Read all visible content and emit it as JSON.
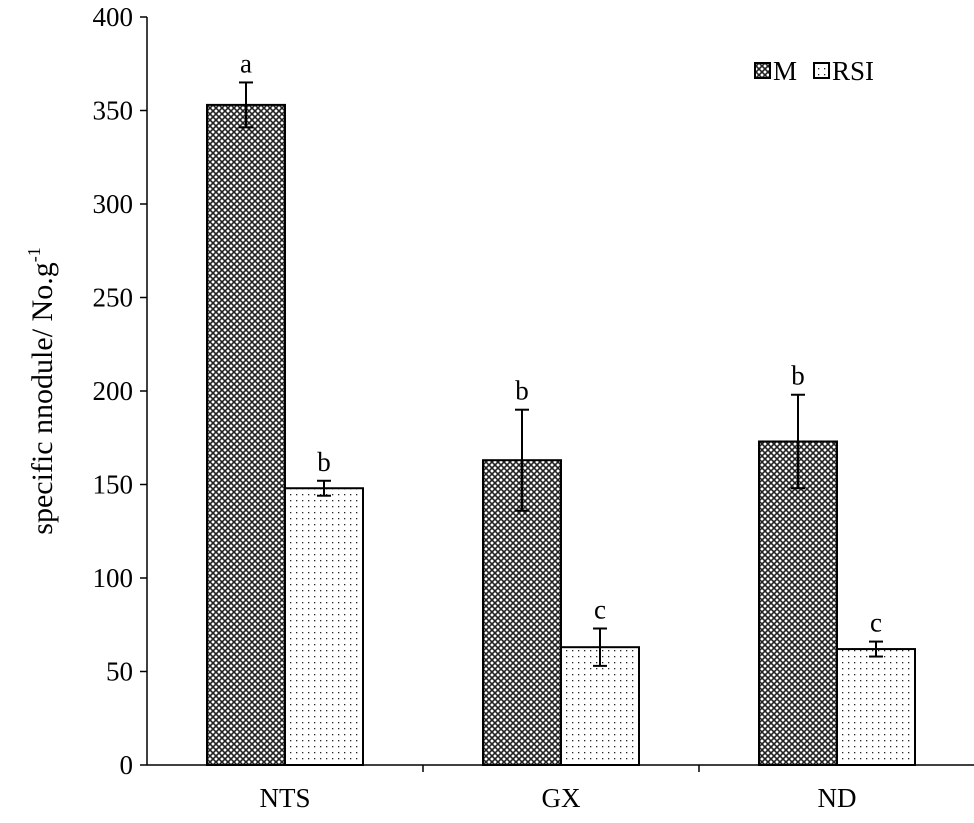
{
  "chart_data": {
    "type": "bar",
    "title": "",
    "xlabel": "",
    "ylabel": "specific nnodule/ No.g",
    "ylabel_superscript": "-1",
    "ylim": [
      0,
      400
    ],
    "yticks": [
      0,
      50,
      100,
      150,
      200,
      250,
      300,
      350,
      400
    ],
    "categories": [
      "NTS",
      "GX",
      "ND"
    ],
    "legend_position": "top-right",
    "grid": false,
    "series": [
      {
        "name": "M",
        "pattern": "crosshatch",
        "values": [
          353,
          163,
          173
        ],
        "errors": [
          12,
          27,
          25
        ],
        "labels": [
          "a",
          "b",
          "b"
        ]
      },
      {
        "name": "RSI",
        "pattern": "dots",
        "values": [
          148,
          63,
          62
        ],
        "errors": [
          4,
          10,
          4
        ],
        "labels": [
          "b",
          "c",
          "c"
        ]
      }
    ]
  }
}
